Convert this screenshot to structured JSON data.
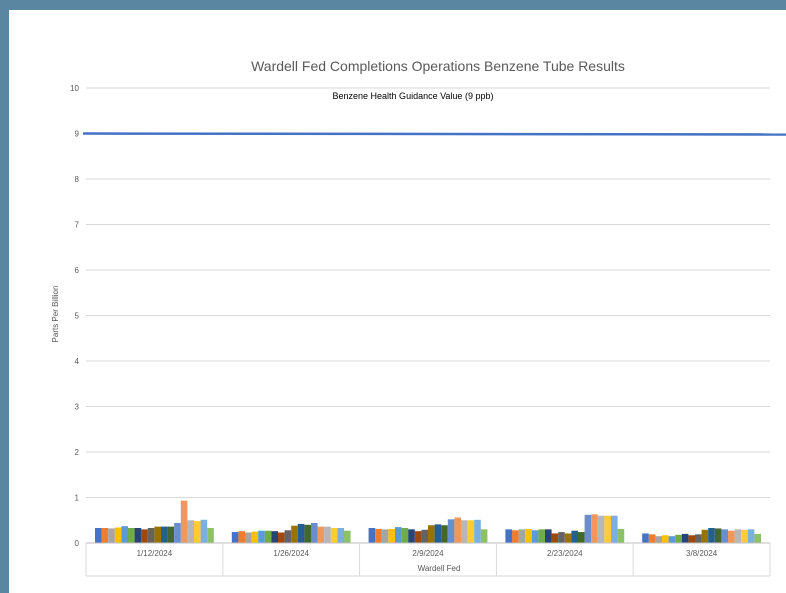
{
  "chart_data": {
    "type": "bar",
    "title": "Wardell Fed Completions Operations Benzene Tube Results",
    "annotation": "Benzene Health Guidance Value (9 ppb)",
    "xlabel": "Wardell Fed",
    "ylabel": "Parts Per Billion",
    "ylim": [
      0,
      10
    ],
    "yticks": [
      "0",
      "1",
      "2",
      "3",
      "4",
      "5",
      "6",
      "7",
      "8",
      "9",
      "10"
    ],
    "grid": true,
    "legend": "none",
    "reference_line": {
      "value": 9,
      "color": "#4472c4"
    },
    "categories": [
      "1/12/2024",
      "1/26/2024",
      "2/9/2024",
      "2/23/2024",
      "3/8/2024"
    ],
    "series_colors": [
      "#4472c4",
      "#ed7d31",
      "#a5a5a5",
      "#ffc000",
      "#5b9bd5",
      "#70ad47",
      "#264478",
      "#9e480e",
      "#636363",
      "#997300",
      "#255e91",
      "#43682b",
      "#698ed0",
      "#f1975a",
      "#b7b7b7",
      "#ffcd33",
      "#7cafdd",
      "#8cc168"
    ],
    "values": [
      [
        0.33,
        0.33,
        0.32,
        0.34,
        0.37,
        0.33,
        0.33,
        0.3,
        0.33,
        0.36,
        0.36,
        0.36,
        0.44,
        0.93,
        0.5,
        0.48,
        0.51,
        0.33
      ],
      [
        0.24,
        0.26,
        0.23,
        0.25,
        0.27,
        0.27,
        0.26,
        0.23,
        0.28,
        0.38,
        0.42,
        0.4,
        0.44,
        0.36,
        0.36,
        0.33,
        0.33,
        0.27
      ],
      [
        0.33,
        0.31,
        0.3,
        0.31,
        0.35,
        0.33,
        0.3,
        0.26,
        0.29,
        0.39,
        0.41,
        0.39,
        0.52,
        0.56,
        0.5,
        0.5,
        0.51,
        0.3
      ],
      [
        0.3,
        0.28,
        0.3,
        0.31,
        0.28,
        0.3,
        0.3,
        0.21,
        0.24,
        0.21,
        0.27,
        0.24,
        0.62,
        0.63,
        0.6,
        0.6,
        0.6,
        0.31
      ],
      [
        0.21,
        0.19,
        0.15,
        0.17,
        0.15,
        0.18,
        0.2,
        0.17,
        0.19,
        0.29,
        0.33,
        0.32,
        0.3,
        0.27,
        0.3,
        0.29,
        0.3,
        0.2
      ]
    ]
  }
}
